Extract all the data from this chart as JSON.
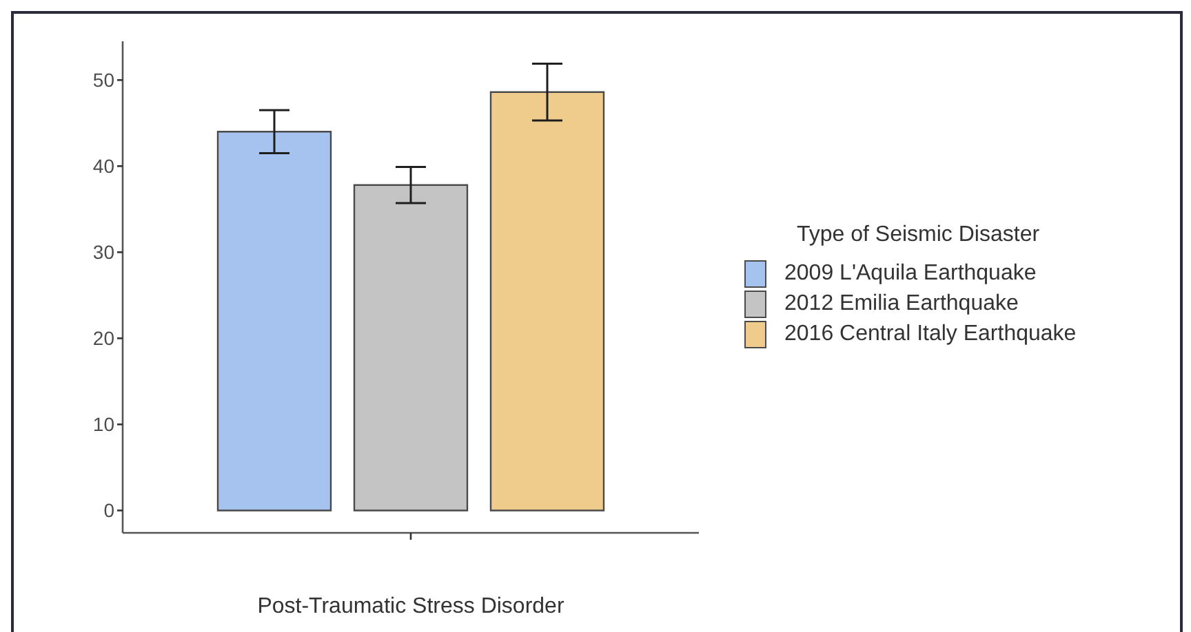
{
  "chart_data": {
    "type": "bar",
    "xlabel": "Post-Traumatic Stress Disorder",
    "legend_title": "Type of Seismic Disaster",
    "categories": [
      null
    ],
    "series": [
      {
        "name": "2009 L'Aquila Earthquake",
        "color": "#a6c3ef",
        "values": [
          44.0
        ],
        "errors": [
          2.5
        ]
      },
      {
        "name": "2012 Emilia Earthquake",
        "color": "#c4c4c4",
        "values": [
          37.8
        ],
        "errors": [
          2.1
        ]
      },
      {
        "name": "2016 Central Italy Earthquake",
        "color": "#efcc8c",
        "values": [
          48.6
        ],
        "errors": [
          3.3
        ]
      }
    ],
    "ylim": [
      -2.6,
      54.5
    ],
    "yticks": [
      0,
      10,
      20,
      30,
      40,
      50
    ],
    "legend": "right"
  }
}
